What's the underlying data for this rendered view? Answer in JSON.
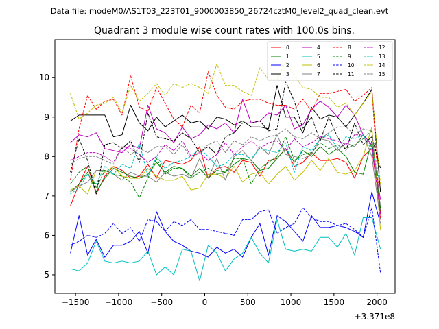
{
  "header": {
    "data_file": "Data file: modeM0/AS1T03_223T01_9000003850_26724cztM0_level2_quad_clean.evt"
  },
  "chart_data": {
    "type": "line",
    "title": "Quadrant 3 module wise count rates with 100.0s bins.",
    "xlabel": "",
    "ylabel": "",
    "x_offset_label": "+3.371e8",
    "xlim": [
      -1740,
      2210
    ],
    "ylim": [
      4.53,
      10.96
    ],
    "x_ticks": [
      -1500,
      -1000,
      -500,
      0,
      500,
      1000,
      1500,
      2000
    ],
    "x_tick_labels": [
      "−1500",
      "−1000",
      "−500",
      "0",
      "500",
      "1000",
      "1500",
      "2000"
    ],
    "y_ticks": [
      5,
      6,
      7,
      8,
      9,
      10
    ],
    "y_tick_labels": [
      "5",
      "6",
      "7",
      "8",
      "9",
      "10"
    ],
    "legend_position": "upper-right",
    "x": [
      -1560,
      -1460,
      -1360,
      -1260,
      -1160,
      -1060,
      -960,
      -860,
      -760,
      -660,
      -560,
      -460,
      -360,
      -260,
      -160,
      -60,
      40,
      140,
      240,
      340,
      440,
      540,
      640,
      740,
      840,
      940,
      1040,
      1140,
      1240,
      1340,
      1440,
      1540,
      1640,
      1740,
      1840,
      1940,
      2040
    ],
    "series": [
      {
        "name": "0",
        "color": "#ff0000",
        "dash": "solid",
        "values": [
          6.75,
          7.3,
          7.75,
          7.05,
          7.5,
          7.75,
          7.65,
          7.45,
          7.5,
          7.8,
          7.45,
          7.9,
          7.85,
          7.8,
          7.9,
          8.25,
          7.45,
          7.7,
          7.75,
          7.6,
          7.9,
          7.85,
          7.5,
          7.9,
          7.95,
          8.2,
          7.75,
          7.85,
          8.1,
          7.9,
          7.9,
          7.95,
          7.85,
          7.45,
          8.0,
          8.2,
          6.6
        ]
      },
      {
        "name": "1",
        "color": "#008000",
        "dash": "solid",
        "values": [
          7.1,
          7.3,
          7.6,
          7.1,
          7.45,
          7.7,
          7.6,
          7.5,
          7.45,
          7.55,
          7.85,
          7.6,
          7.75,
          7.7,
          7.5,
          7.7,
          7.45,
          7.65,
          7.6,
          7.8,
          7.95,
          7.9,
          7.65,
          7.7,
          7.95,
          8.2,
          7.85,
          8.15,
          8.0,
          8.25,
          8.05,
          8.2,
          8.0,
          7.6,
          7.55,
          8.4,
          6.7
        ]
      },
      {
        "name": "2",
        "color": "#0000ff",
        "dash": "solid",
        "values": [
          5.55,
          6.5,
          5.5,
          5.9,
          5.45,
          5.75,
          5.75,
          5.85,
          6.1,
          5.55,
          6.6,
          6.1,
          5.85,
          5.75,
          5.6,
          5.55,
          5.45,
          5.7,
          5.55,
          5.65,
          5.45,
          5.95,
          6.3,
          5.5,
          6.5,
          6.35,
          6.1,
          5.85,
          6.5,
          6.2,
          6.2,
          6.25,
          6.2,
          6.1,
          5.95,
          7.1,
          6.3
        ]
      },
      {
        "name": "3",
        "color": "#000000",
        "dash": "solid",
        "values": [
          8.9,
          9.05,
          9.05,
          9.05,
          9.05,
          8.5,
          8.55,
          9.3,
          8.85,
          8.65,
          9.0,
          8.75,
          8.9,
          9.05,
          8.85,
          8.9,
          8.7,
          9.0,
          8.95,
          8.8,
          8.9,
          8.75,
          8.75,
          8.7,
          9.8,
          9.0,
          9.0,
          8.6,
          9.25,
          8.95,
          9.05,
          9.0,
          8.75,
          9.05,
          9.35,
          9.7,
          7.1
        ]
      },
      {
        "name": "4",
        "color": "#bf00bf",
        "dash": "solid",
        "values": [
          8.35,
          8.55,
          8.5,
          8.6,
          8.2,
          8.15,
          8.1,
          8.3,
          8.2,
          9.3,
          8.7,
          8.6,
          8.35,
          8.75,
          8.45,
          8.55,
          8.8,
          8.7,
          8.85,
          8.6,
          9.45,
          8.85,
          8.9,
          9.1,
          9.05,
          9.3,
          8.7,
          8.8,
          9.2,
          9.4,
          9.25,
          9.0,
          9.3,
          9.05,
          8.55,
          8.3,
          6.9
        ]
      },
      {
        "name": "5",
        "color": "#00bfbf",
        "dash": "solid",
        "values": [
          5.15,
          5.1,
          5.3,
          5.85,
          5.35,
          5.3,
          5.35,
          5.3,
          5.35,
          5.6,
          5.0,
          5.2,
          5.0,
          5.65,
          5.6,
          4.85,
          5.75,
          5.55,
          5.1,
          5.4,
          5.55,
          5.95,
          5.55,
          5.3,
          6.4,
          5.65,
          5.6,
          5.65,
          5.6,
          5.95,
          5.95,
          5.7,
          6.05,
          5.5,
          6.45,
          6.45,
          5.65
        ]
      },
      {
        "name": "6",
        "color": "#bfbf00",
        "dash": "solid",
        "values": [
          7.15,
          7.25,
          7.05,
          7.65,
          7.6,
          7.75,
          7.5,
          7.45,
          7.45,
          7.7,
          7.5,
          7.4,
          7.4,
          7.5,
          7.15,
          7.2,
          7.55,
          7.55,
          7.45,
          7.75,
          7.35,
          7.55,
          7.6,
          7.3,
          7.55,
          7.75,
          7.4,
          7.6,
          7.9,
          7.65,
          7.95,
          7.6,
          7.55,
          7.65,
          8.0,
          8.75,
          6.15
        ]
      },
      {
        "name": "7",
        "color": "#808080",
        "dash": "solid",
        "values": [
          7.1,
          7.25,
          7.35,
          7.65,
          7.65,
          7.55,
          7.4,
          7.6,
          7.5,
          7.5,
          7.35,
          7.6,
          7.5,
          7.55,
          7.45,
          7.95,
          7.45,
          7.95,
          7.4,
          8.0,
          8.15,
          7.9,
          8.25,
          8.05,
          8.55,
          8.05,
          8.0,
          7.95,
          8.05,
          8.45,
          8.4,
          8.15,
          8.35,
          8.25,
          8.55,
          8.0,
          6.4
        ]
      },
      {
        "name": "8",
        "color": "#ff0000",
        "dash": "dashed",
        "values": [
          7.4,
          8.7,
          9.55,
          9.2,
          9.4,
          9.45,
          9.05,
          10.05,
          9.25,
          9.15,
          9.75,
          9.35,
          8.95,
          8.75,
          9.3,
          9.1,
          10.15,
          9.55,
          9.25,
          9.2,
          9.4,
          9.45,
          9.45,
          9.35,
          9.3,
          9.3,
          9.2,
          9.45,
          9.15,
          9.6,
          9.6,
          9.65,
          9.7,
          9.4,
          9.55,
          9.75,
          6.4
        ]
      },
      {
        "name": "9",
        "color": "#008000",
        "dash": "dashed",
        "values": [
          7.3,
          7.6,
          7.75,
          7.2,
          7.65,
          7.55,
          7.5,
          7.35,
          6.95,
          7.45,
          7.95,
          7.55,
          7.7,
          7.7,
          7.45,
          7.6,
          7.7,
          7.55,
          7.6,
          7.95,
          7.95,
          7.3,
          7.7,
          7.85,
          8.0,
          8.5,
          7.9,
          8.05,
          8.1,
          8.35,
          8.2,
          8.3,
          8.2,
          8.3,
          8.45,
          8.65,
          6.6
        ]
      },
      {
        "name": "10",
        "color": "#0000ff",
        "dash": "dashed",
        "values": [
          5.75,
          5.85,
          6.0,
          5.95,
          6.05,
          6.3,
          6.05,
          6.2,
          5.85,
          6.4,
          6.35,
          6.1,
          6.35,
          6.25,
          6.4,
          6.15,
          6.15,
          6.1,
          6.05,
          6.0,
          6.4,
          6.4,
          6.6,
          6.65,
          6.05,
          6.2,
          6.3,
          6.7,
          6.45,
          6.35,
          6.35,
          6.25,
          6.3,
          6.15,
          5.95,
          6.7,
          5.05
        ]
      },
      {
        "name": "11",
        "color": "#000000",
        "dash": "dashed",
        "values": [
          7.6,
          8.45,
          7.9,
          7.05,
          8.3,
          8.35,
          8.2,
          8.4,
          7.85,
          9.1,
          8.5,
          8.45,
          8.4,
          8.6,
          8.45,
          8.1,
          8.25,
          8.05,
          8.5,
          8.6,
          8.85,
          8.85,
          8.9,
          8.65,
          8.7,
          9.9,
          9.4,
          8.7,
          9.0,
          8.4,
          9.0,
          8.5,
          8.15,
          8.85,
          8.3,
          8.5,
          7.7
        ]
      },
      {
        "name": "12",
        "color": "#bf00bf",
        "dash": "dashed",
        "values": [
          7.9,
          8.0,
          8.1,
          8.1,
          8.0,
          7.85,
          8.25,
          8.2,
          8.05,
          7.85,
          8.0,
          8.3,
          8.15,
          8.4,
          8.0,
          8.1,
          7.9,
          8.05,
          8.35,
          8.05,
          8.25,
          8.4,
          8.2,
          8.35,
          8.4,
          8.15,
          8.45,
          8.25,
          8.35,
          8.5,
          8.45,
          8.4,
          8.3,
          8.55,
          8.55,
          8.25,
          6.55
        ]
      },
      {
        "name": "13",
        "color": "#00bfbf",
        "dash": "dashed",
        "values": [
          7.05,
          7.2,
          7.55,
          7.3,
          7.75,
          7.55,
          7.8,
          7.7,
          8.35,
          7.5,
          8.0,
          7.7,
          7.85,
          7.9,
          8.0,
          8.2,
          8.0,
          7.75,
          7.8,
          8.05,
          8.05,
          7.95,
          8.2,
          8.15,
          8.1,
          8.35,
          7.6,
          8.25,
          8.15,
          8.45,
          8.55,
          8.2,
          8.5,
          8.45,
          8.55,
          8.15,
          7.3
        ]
      },
      {
        "name": "14",
        "color": "#bfbf00",
        "dash": "dashed",
        "values": [
          9.6,
          8.95,
          9.1,
          9.3,
          9.35,
          9.5,
          9.1,
          9.8,
          9.4,
          9.6,
          9.85,
          9.55,
          9.85,
          9.75,
          9.85,
          9.75,
          9.6,
          10.35,
          9.8,
          9.8,
          9.65,
          9.55,
          10.25,
          9.95,
          9.95,
          10.4,
          10.05,
          9.75,
          9.7,
          9.5,
          9.5,
          9.25,
          9.35,
          9.05,
          9.35,
          9.65,
          7.3
        ]
      },
      {
        "name": "15",
        "color": "#808080",
        "dash": "dashed",
        "values": [
          7.8,
          7.95,
          8.0,
          8.0,
          7.9,
          7.8,
          8.25,
          8.05,
          8.2,
          8.1,
          8.25,
          8.25,
          8.05,
          8.3,
          7.95,
          8.1,
          8.3,
          8.4,
          8.1,
          8.4,
          8.3,
          8.5,
          8.4,
          8.5,
          8.55,
          8.7,
          8.5,
          8.45,
          8.6,
          8.45,
          8.6,
          8.75,
          8.75,
          8.55,
          8.7,
          8.65,
          6.75
        ]
      }
    ]
  }
}
